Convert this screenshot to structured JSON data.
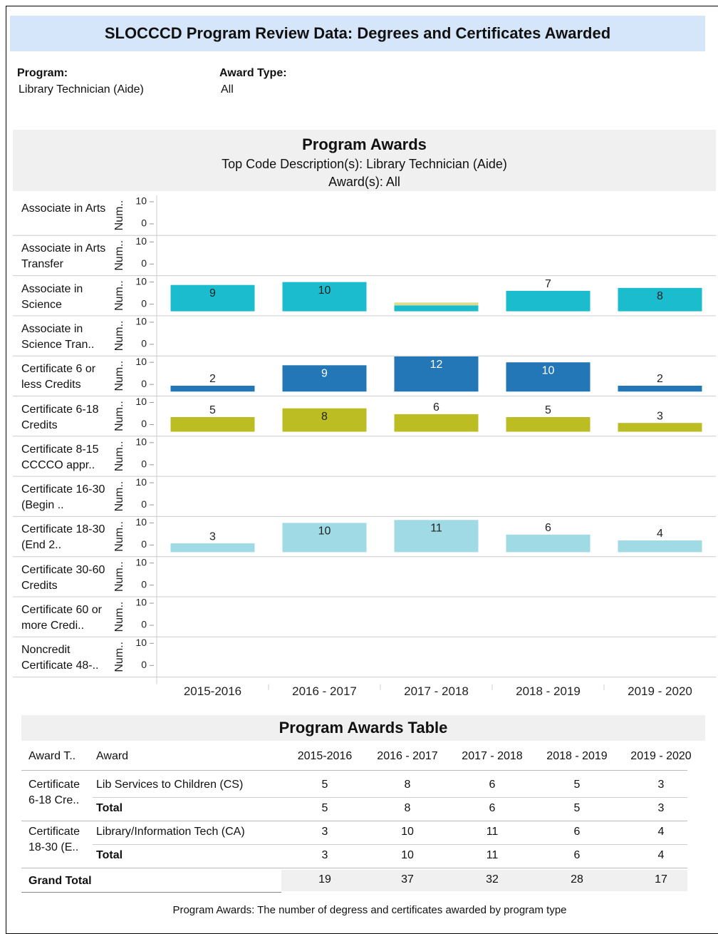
{
  "header": {
    "title": "SLOCCCD Program Review Data: Degrees and Certificates Awarded"
  },
  "filters": [
    {
      "label": "Program:",
      "value": "Library Technician (Aide)"
    },
    {
      "label": "Award Type:",
      "value": "All"
    }
  ],
  "chart_data": {
    "type": "bar",
    "title": "Program Awards",
    "subtitle": [
      "Top Code Description(s): Library Technician (Aide)",
      "Award(s): All"
    ],
    "y_label": "Num..",
    "categories": [
      "2015-2016",
      "2016 - 2017",
      "2017 - 2018",
      "2018 - 2019",
      "2019 - 2020"
    ],
    "ylim": [
      0,
      12
    ],
    "yticks": [
      0,
      10
    ],
    "rows": [
      {
        "label": "Associate in Arts",
        "series": []
      },
      {
        "label": "Associate in Arts Transfer",
        "series": []
      },
      {
        "label": "Associate in Science",
        "series": [
          {
            "color": "#1bbccd",
            "values": [
              9,
              10,
              2,
              7,
              8
            ],
            "value_labels": [
              "9",
              "10",
              null,
              "7",
              "8"
            ]
          },
          {
            "color": "#dbdb8d",
            "values": [
              null,
              null,
              1,
              null,
              null
            ],
            "value_labels": [
              null,
              null,
              null,
              null,
              null
            ]
          }
        ]
      },
      {
        "label": "Associate in Science Tran..",
        "series": []
      },
      {
        "label": "Certificate 6 or less Credits",
        "series": [
          {
            "color": "#2377b6",
            "values": [
              2,
              9,
              12,
              10,
              2
            ]
          }
        ]
      },
      {
        "label": "Certificate 6-18 Credits",
        "series": [
          {
            "color": "#bcbd22",
            "values": [
              5,
              8,
              6,
              5,
              3
            ]
          }
        ]
      },
      {
        "label": "Certificate 8-15 CCCCO appr..",
        "series": []
      },
      {
        "label": "Certificate 16-30 (Begin ..",
        "series": []
      },
      {
        "label": "Certificate 18-30 (End 2..",
        "series": [
          {
            "color": "#9fdae5",
            "values": [
              3,
              10,
              11,
              6,
              4
            ]
          }
        ]
      },
      {
        "label": "Certificate 30-60 Credits",
        "series": []
      },
      {
        "label": "Certificate 60 or more Credi..",
        "series": []
      },
      {
        "label": "Noncredit Certificate 48-..",
        "series": []
      }
    ]
  },
  "table": {
    "title": "Program Awards Table",
    "columns": [
      "Award T..",
      "Award",
      "2015-2016",
      "2016 - 2017",
      "2017 - 2018",
      "2018 - 2019",
      "2019 - 2020"
    ],
    "groups": [
      {
        "award_type": "Certificate 6-18 Cre..",
        "rows": [
          [
            "Lib Services to Children (CS)",
            5,
            8,
            6,
            5,
            3
          ],
          [
            "Total",
            5,
            8,
            6,
            5,
            3
          ]
        ]
      },
      {
        "award_type": "Certificate 18-30 (E..",
        "rows": [
          [
            "Library/Information Tech (CA)",
            3,
            10,
            11,
            6,
            4
          ],
          [
            "Total",
            3,
            10,
            11,
            6,
            4
          ]
        ]
      }
    ],
    "grand_total": {
      "label": "Grand Total",
      "values": [
        19,
        37,
        32,
        28,
        17
      ]
    }
  },
  "footer": "Program Awards: The number of degress and certificates awarded by program type"
}
